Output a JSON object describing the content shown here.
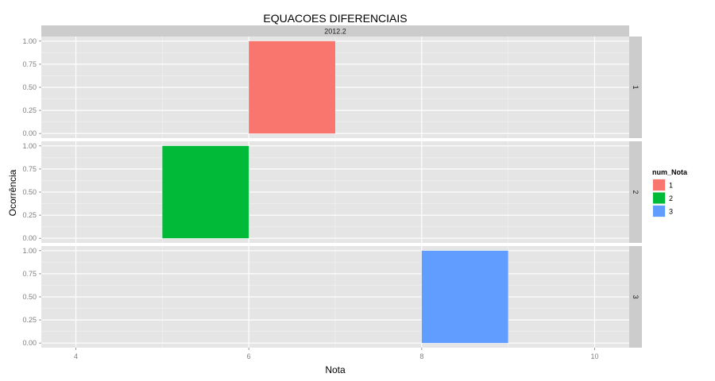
{
  "chart_data": {
    "type": "bar",
    "title": "EQUACOES DIFERENCIAIS",
    "strip_top": "2012.2",
    "xlabel": "Nota",
    "ylabel": "Ocorrência",
    "xlim": [
      3.6,
      10.4
    ],
    "xticks": [
      4,
      6,
      8,
      10
    ],
    "xtick_labels": [
      "4",
      "6",
      "8",
      "10"
    ],
    "ylim": [
      -0.05,
      1.05
    ],
    "yticks": [
      0,
      0.25,
      0.5,
      0.75,
      1
    ],
    "ytick_labels": [
      "0.00",
      "0.25",
      "0.50",
      "0.75",
      "1.00"
    ],
    "grid": true,
    "legend": {
      "title": "num_Nota",
      "position": "right"
    },
    "facets": [
      {
        "label": "1",
        "series": "1",
        "bars": [
          {
            "xmin": 6,
            "xmax": 7,
            "value": 1
          }
        ]
      },
      {
        "label": "2",
        "series": "2",
        "bars": [
          {
            "xmin": 5,
            "xmax": 6,
            "value": 1
          }
        ]
      },
      {
        "label": "3",
        "series": "3",
        "bars": [
          {
            "xmin": 8,
            "xmax": 9,
            "value": 1
          }
        ]
      }
    ],
    "series": [
      {
        "name": "1",
        "color": "#F8766D"
      },
      {
        "name": "2",
        "color": "#00BA38"
      },
      {
        "name": "3",
        "color": "#619CFF"
      }
    ]
  }
}
